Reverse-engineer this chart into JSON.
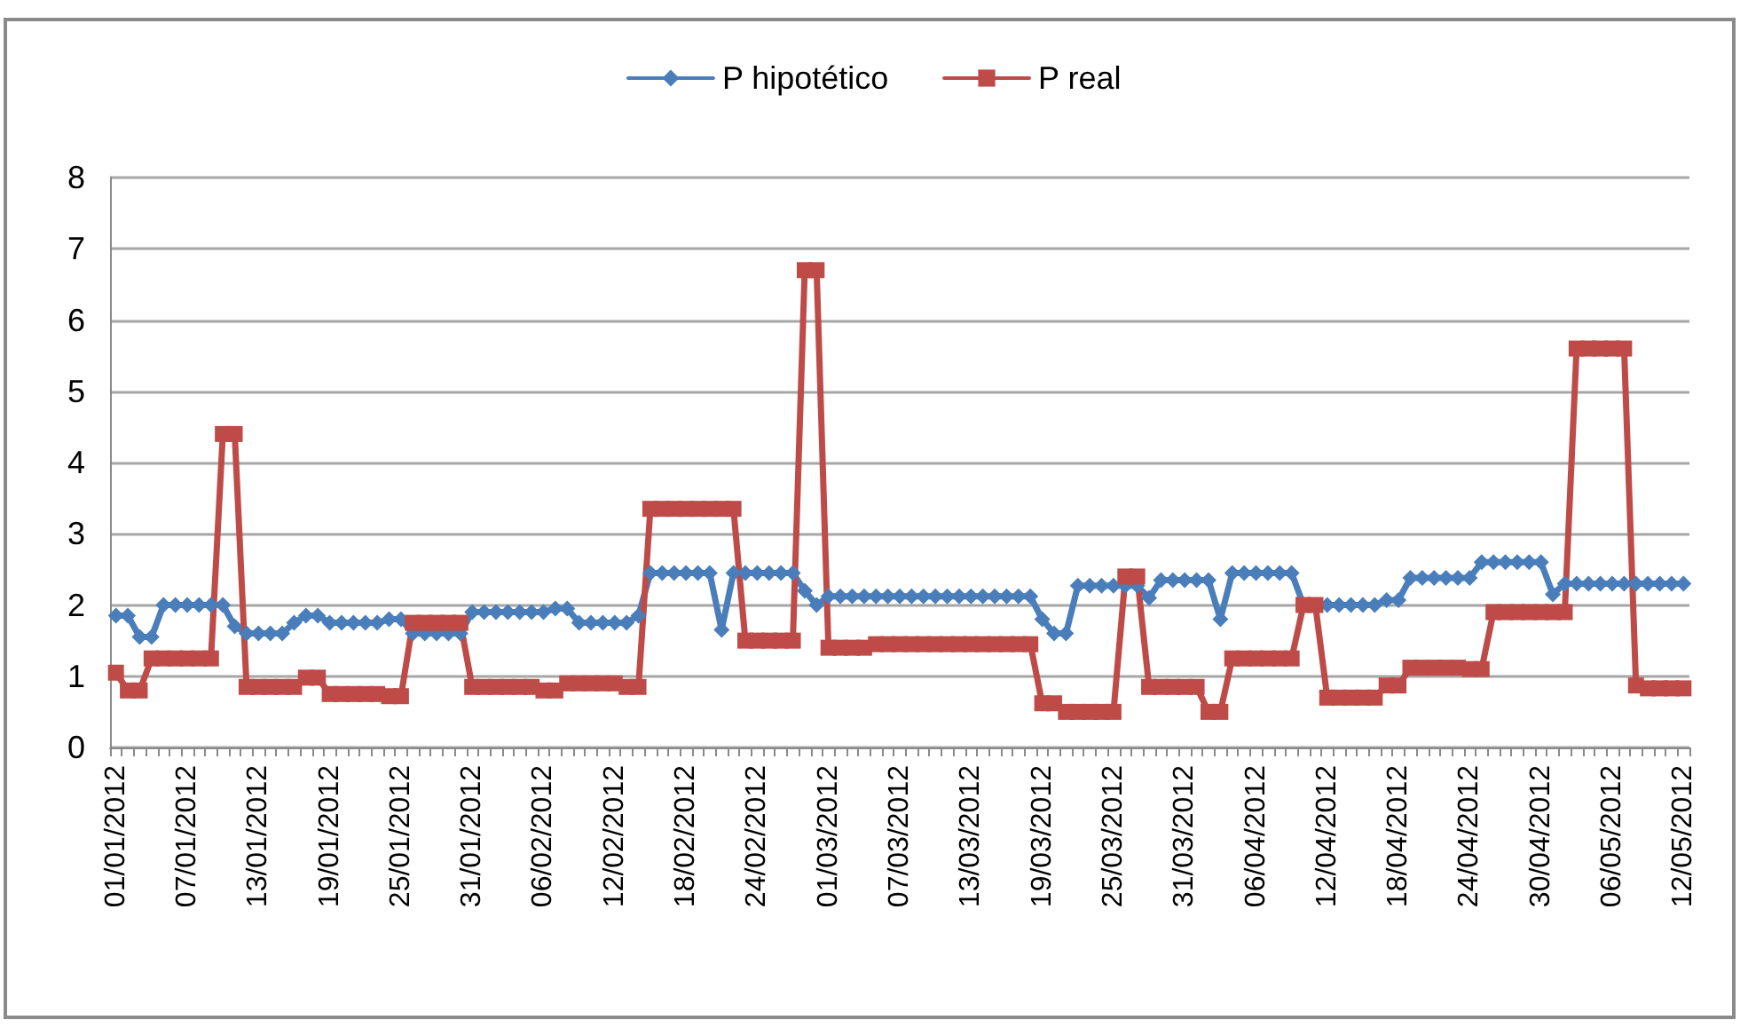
{
  "chart_data": {
    "type": "line",
    "categories": [
      "01/01/2012",
      null,
      null,
      null,
      null,
      null,
      "07/01/2012",
      null,
      null,
      null,
      null,
      null,
      "13/01/2012",
      null,
      null,
      null,
      null,
      null,
      "19/01/2012",
      null,
      null,
      null,
      null,
      null,
      "25/01/2012",
      null,
      null,
      null,
      null,
      null,
      "31/01/2012",
      null,
      null,
      null,
      null,
      null,
      "06/02/2012",
      null,
      null,
      null,
      null,
      null,
      "12/02/2012",
      null,
      null,
      null,
      null,
      null,
      "18/02/2012",
      null,
      null,
      null,
      null,
      null,
      "24/02/2012",
      null,
      null,
      null,
      null,
      null,
      "01/03/2012",
      null,
      null,
      null,
      null,
      null,
      "07/03/2012",
      null,
      null,
      null,
      null,
      null,
      "13/03/2012",
      null,
      null,
      null,
      null,
      null,
      "19/03/2012",
      null,
      null,
      null,
      null,
      null,
      "25/03/2012",
      null,
      null,
      null,
      null,
      null,
      "31/03/2012",
      null,
      null,
      null,
      null,
      null,
      "06/04/2012",
      null,
      null,
      null,
      null,
      null,
      "12/04/2012",
      null,
      null,
      null,
      null,
      null,
      "18/04/2012",
      null,
      null,
      null,
      null,
      null,
      "24/04/2012",
      null,
      null,
      null,
      null,
      null,
      "30/04/2012",
      null,
      null,
      null,
      null,
      null,
      "06/05/2012",
      null,
      null,
      null,
      null,
      null,
      "12/05/2012"
    ],
    "series": [
      {
        "name": "P hipotético",
        "color": "#4a7ebb",
        "marker": "diamond",
        "values": [
          1.85,
          1.85,
          1.55,
          1.55,
          2.0,
          2.0,
          2.0,
          2.0,
          2.0,
          2.0,
          1.7,
          1.6,
          1.6,
          1.6,
          1.6,
          1.75,
          1.85,
          1.85,
          1.75,
          1.75,
          1.75,
          1.75,
          1.75,
          1.8,
          1.8,
          1.6,
          1.6,
          1.6,
          1.6,
          1.6,
          1.9,
          1.9,
          1.9,
          1.9,
          1.9,
          1.9,
          1.9,
          1.95,
          1.95,
          1.75,
          1.75,
          1.75,
          1.75,
          1.75,
          1.85,
          2.45,
          2.45,
          2.45,
          2.45,
          2.45,
          2.45,
          1.65,
          2.45,
          2.45,
          2.45,
          2.45,
          2.45,
          2.45,
          2.2,
          2.0,
          2.12,
          2.12,
          2.12,
          2.12,
          2.12,
          2.12,
          2.12,
          2.12,
          2.12,
          2.12,
          2.12,
          2.12,
          2.12,
          2.12,
          2.12,
          2.12,
          2.12,
          2.12,
          1.8,
          1.6,
          1.6,
          2.27,
          2.27,
          2.27,
          2.27,
          2.27,
          2.27,
          2.1,
          2.35,
          2.35,
          2.35,
          2.35,
          2.35,
          1.8,
          2.45,
          2.45,
          2.45,
          2.45,
          2.45,
          2.45,
          2.0,
          2.0,
          2.0,
          2.0,
          2.0,
          2.0,
          2.0,
          2.07,
          2.07,
          2.38,
          2.38,
          2.38,
          2.38,
          2.38,
          2.38,
          2.6,
          2.6,
          2.6,
          2.6,
          2.6,
          2.6,
          2.15,
          2.3,
          2.3,
          2.3,
          2.3,
          2.3,
          2.3,
          2.3,
          2.3,
          2.3,
          2.3,
          2.3
        ]
      },
      {
        "name": "P real",
        "color": "#be4b48",
        "marker": "square",
        "values": [
          1.05,
          0.8,
          0.8,
          1.25,
          1.25,
          1.25,
          1.25,
          1.25,
          1.25,
          4.4,
          4.4,
          0.85,
          0.85,
          0.85,
          0.85,
          0.85,
          0.98,
          0.98,
          0.75,
          0.75,
          0.75,
          0.75,
          0.75,
          0.72,
          0.72,
          1.75,
          1.75,
          1.75,
          1.75,
          1.75,
          0.85,
          0.85,
          0.85,
          0.85,
          0.85,
          0.85,
          0.8,
          0.8,
          0.9,
          0.9,
          0.9,
          0.9,
          0.9,
          0.85,
          0.85,
          3.35,
          3.35,
          3.35,
          3.35,
          3.35,
          3.35,
          3.35,
          3.35,
          1.5,
          1.5,
          1.5,
          1.5,
          1.5,
          6.7,
          6.7,
          1.4,
          1.4,
          1.4,
          1.4,
          1.45,
          1.45,
          1.45,
          1.45,
          1.45,
          1.45,
          1.45,
          1.45,
          1.45,
          1.45,
          1.45,
          1.45,
          1.45,
          1.45,
          0.62,
          0.62,
          0.5,
          0.5,
          0.5,
          0.5,
          0.5,
          2.4,
          2.4,
          0.85,
          0.85,
          0.85,
          0.85,
          0.85,
          0.5,
          0.5,
          1.25,
          1.25,
          1.25,
          1.25,
          1.25,
          1.25,
          2.0,
          2.0,
          0.7,
          0.7,
          0.7,
          0.7,
          0.7,
          0.87,
          0.87,
          1.12,
          1.12,
          1.12,
          1.12,
          1.12,
          1.1,
          1.1,
          1.9,
          1.9,
          1.9,
          1.9,
          1.9,
          1.9,
          1.9,
          5.6,
          5.6,
          5.6,
          5.6,
          5.6,
          0.87,
          0.83,
          0.83,
          0.83,
          0.83
        ]
      }
    ],
    "ylim": [
      0,
      8
    ],
    "yticks": [
      0,
      1,
      2,
      3,
      4,
      5,
      6,
      7,
      8
    ],
    "grid": "y",
    "legend": "top",
    "line_style": "solid"
  }
}
